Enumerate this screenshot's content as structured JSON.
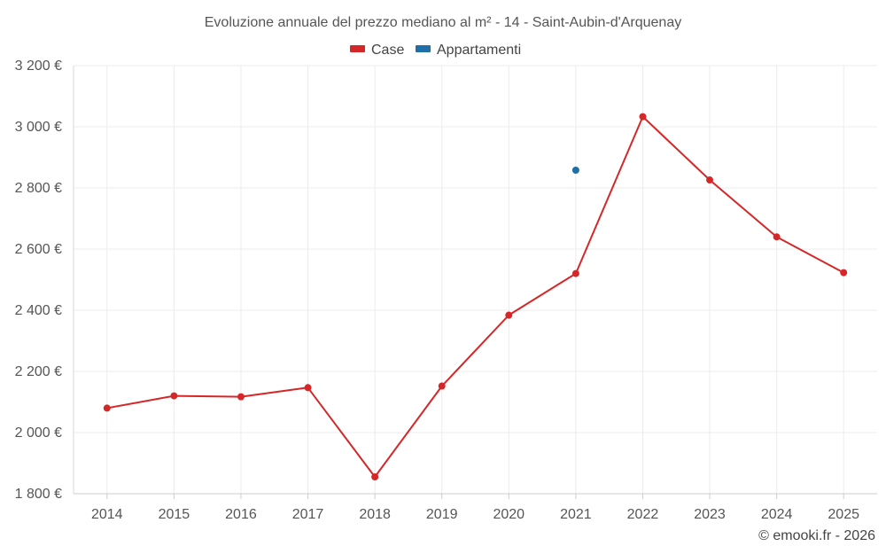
{
  "chart_data": {
    "type": "line",
    "title": "Evoluzione annuale del prezzo mediano al m² - 14 - Saint-Aubin-d'Arquenay",
    "categories": [
      "2014",
      "2015",
      "2016",
      "2017",
      "2018",
      "2019",
      "2020",
      "2021",
      "2022",
      "2023",
      "2024",
      "2025"
    ],
    "y_ticks": [
      "1 800 €",
      "2 000 €",
      "2 200 €",
      "2 400 €",
      "2 600 €",
      "2 800 €",
      "3 000 €",
      "3 200 €"
    ],
    "ylim": [
      1800,
      3200
    ],
    "grid": true,
    "legend_position": "top-center",
    "series": [
      {
        "name": "Case",
        "color": "#d62728",
        "values": [
          2080,
          2120,
          2117,
          2147,
          1855,
          2152,
          2384,
          2520,
          3033,
          2826,
          2640,
          2523
        ]
      },
      {
        "name": "Appartamenti",
        "color": "#1f6fa8",
        "values": [
          null,
          null,
          null,
          null,
          null,
          null,
          null,
          2858,
          null,
          null,
          null,
          null
        ]
      }
    ]
  },
  "credit": "© emooki.fr - 2026"
}
